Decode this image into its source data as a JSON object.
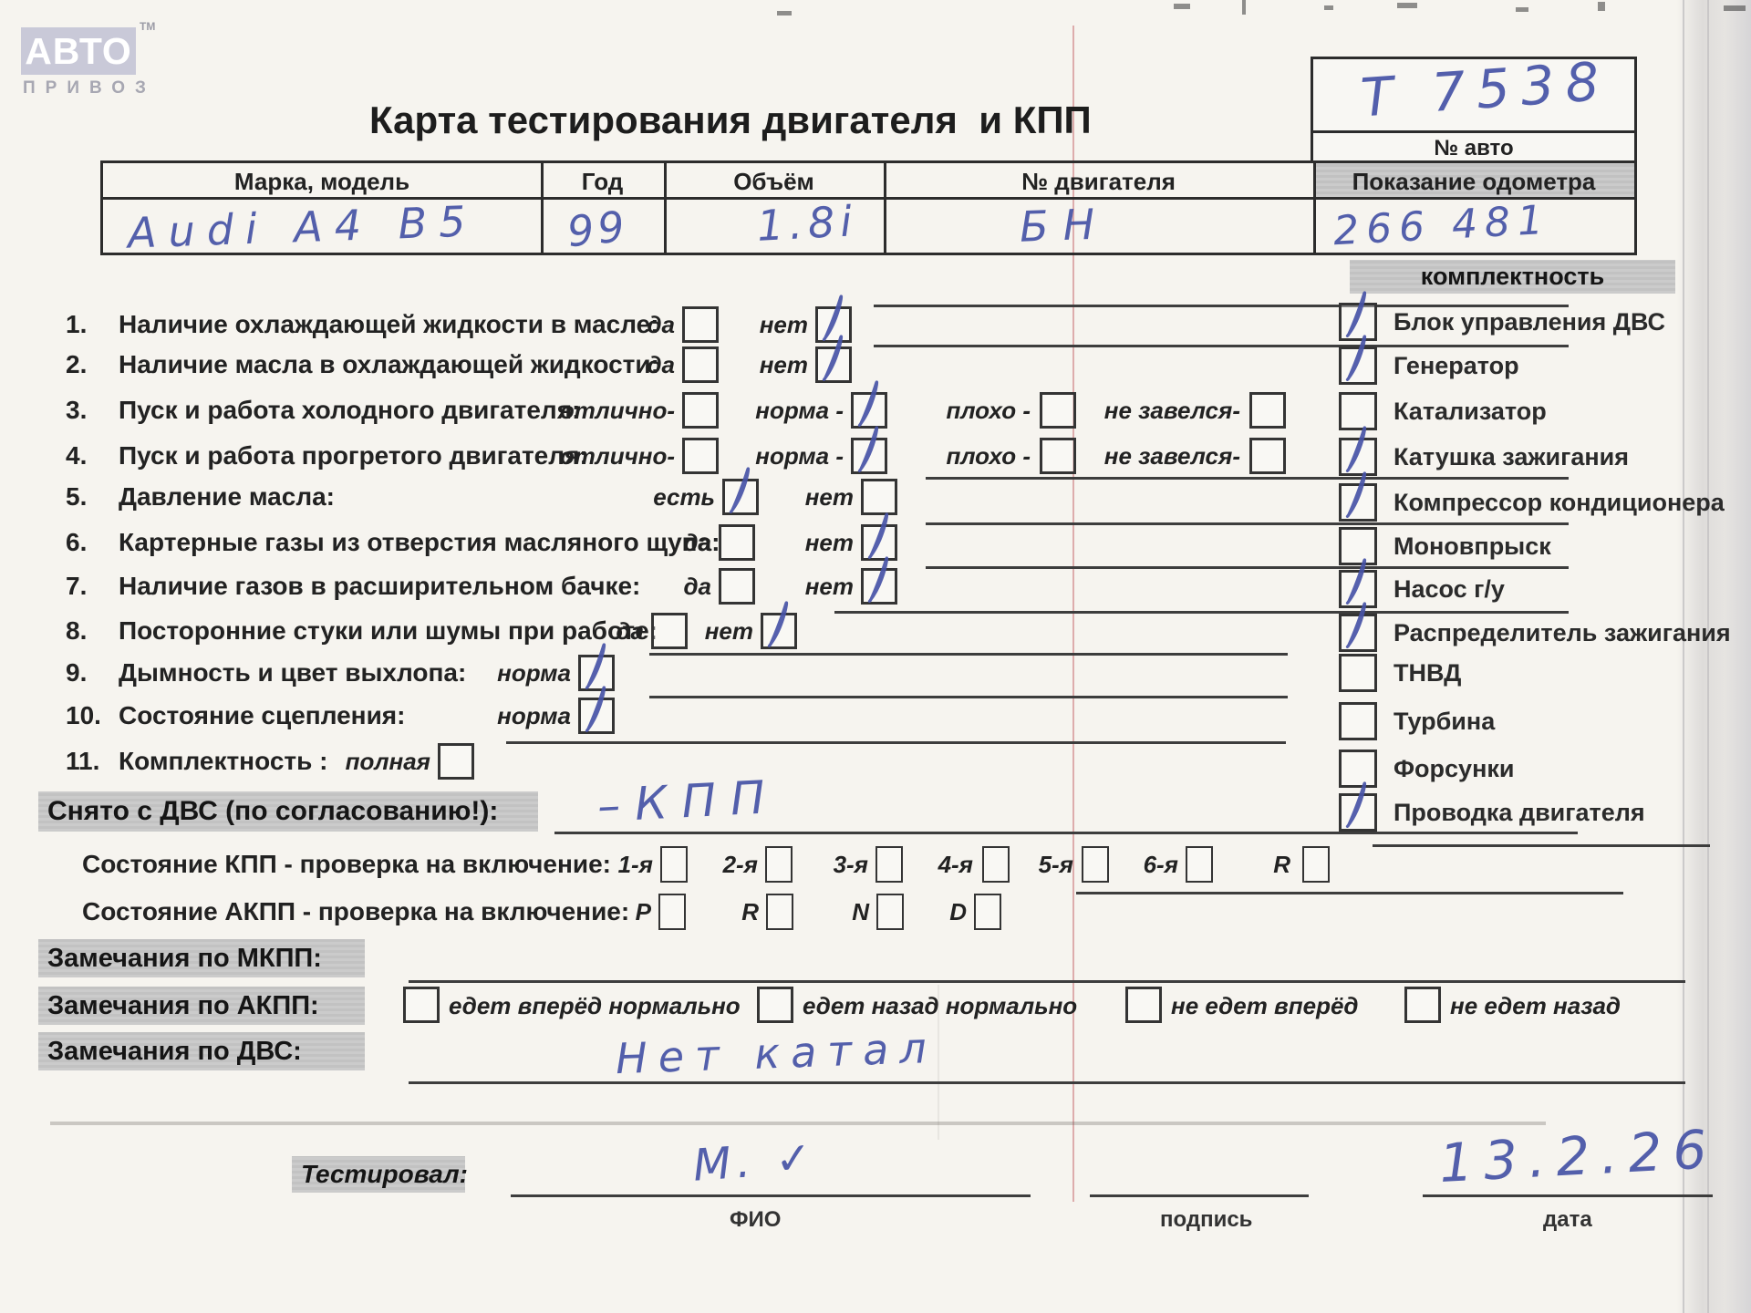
{
  "logo": {
    "brand": "АВТО",
    "tm": "ТМ",
    "subtitle": "ПРИВОЗ"
  },
  "title": "Карта тестирования двигателя  и КПП",
  "auto_number_box": {
    "value": "Т 7538",
    "label": "№ авто"
  },
  "vehicle": {
    "columns": [
      "Марка, модель",
      "Год",
      "Объём",
      "№ двигателя",
      "Показание одометра"
    ],
    "make_model": "Audi A4 B5",
    "year": "99",
    "volume": "1.8i",
    "engine_no": "БН",
    "odometer": "266 481"
  },
  "checklist": {
    "items": [
      {
        "num": "1.",
        "label": "Наличие охлаждающей жидкости в масле:",
        "options": [
          {
            "label": "да",
            "checked": false
          },
          {
            "label": "нет",
            "checked": true
          }
        ]
      },
      {
        "num": "2.",
        "label": "Наличие масла в охлаждающей жидкости:",
        "options": [
          {
            "label": "да",
            "checked": false
          },
          {
            "label": "нет",
            "checked": true
          }
        ]
      },
      {
        "num": "3.",
        "label": "Пуск и работа холодного двигателя:",
        "options": [
          {
            "label": "отлично-",
            "checked": false
          },
          {
            "label": "норма -",
            "checked": true
          },
          {
            "label": "плохо -",
            "checked": false
          },
          {
            "label": "не завелся-",
            "checked": false
          }
        ]
      },
      {
        "num": "4.",
        "label": "Пуск и работа прогретого двигателя:",
        "options": [
          {
            "label": "отлично-",
            "checked": false
          },
          {
            "label": "норма -",
            "checked": true
          },
          {
            "label": "плохо -",
            "checked": false
          },
          {
            "label": "не завелся-",
            "checked": false
          }
        ]
      },
      {
        "num": "5.",
        "label": "Давление масла:",
        "options": [
          {
            "label": "есть",
            "checked": true
          },
          {
            "label": "нет",
            "checked": false
          }
        ]
      },
      {
        "num": "6.",
        "label": "Картерные газы из отверстия масляного щупа:",
        "options": [
          {
            "label": "да",
            "checked": false
          },
          {
            "label": "нет",
            "checked": true
          }
        ]
      },
      {
        "num": "7.",
        "label": "Наличие газов в расширительном бачке:",
        "options": [
          {
            "label": "да",
            "checked": false
          },
          {
            "label": "нет",
            "checked": true
          }
        ]
      },
      {
        "num": "8.",
        "label": "Посторонние стуки или шумы при работе:",
        "options": [
          {
            "label": "да",
            "checked": false
          },
          {
            "label": "нет",
            "checked": true
          }
        ]
      },
      {
        "num": "9.",
        "label": "Дымность и цвет выхлопа:",
        "options": [
          {
            "label": "норма",
            "checked": true
          }
        ]
      },
      {
        "num": "10.",
        "label": "Состояние сцепления:",
        "options": [
          {
            "label": "норма",
            "checked": true
          }
        ]
      },
      {
        "num": "11.",
        "label": "Комплектность :",
        "options": [
          {
            "label": "полная",
            "checked": false
          }
        ]
      }
    ]
  },
  "completeness": {
    "title": "комплектность",
    "items": [
      {
        "label": "Блок управления ДВС",
        "checked": true
      },
      {
        "label": "Генератор",
        "checked": true
      },
      {
        "label": "Катализатор",
        "checked": false
      },
      {
        "label": "Катушка зажигания",
        "checked": true
      },
      {
        "label": "Компрессор кондиционера",
        "checked": true
      },
      {
        "label": "Моновпрыск",
        "checked": false
      },
      {
        "label": "Насос г/у",
        "checked": true
      },
      {
        "label": "Распределитель зажигания",
        "checked": true
      },
      {
        "label": "ТНВД",
        "checked": false
      },
      {
        "label": "Турбина",
        "checked": false
      },
      {
        "label": "Форсунки",
        "checked": false
      },
      {
        "label": "Проводка двигателя",
        "checked": true
      }
    ]
  },
  "removed": {
    "label": "Снято с ДВС (по согласованию!):",
    "value": "–КПП"
  },
  "gearbox": {
    "kpp_label": "Состояние КПП - проверка на включение:",
    "kpp_options": [
      {
        "label": "1-я",
        "checked": false
      },
      {
        "label": "2-я",
        "checked": false
      },
      {
        "label": "3-я",
        "checked": false
      },
      {
        "label": "4-я",
        "checked": false
      },
      {
        "label": "5-я",
        "checked": false
      },
      {
        "label": "6-я",
        "checked": false
      },
      {
        "label": "R",
        "checked": false
      }
    ],
    "akpp_label": "Состояние АКПП - проверка на включение:",
    "akpp_options": [
      {
        "label": "P",
        "checked": false
      },
      {
        "label": "R",
        "checked": false
      },
      {
        "label": "N",
        "checked": false
      },
      {
        "label": "D",
        "checked": false
      }
    ]
  },
  "remarks": {
    "mkpp_label": "Замечания по МКПП:",
    "akpp_label": "Замечания по АКПП:",
    "akpp_options": [
      {
        "label": "едет вперёд нормально",
        "checked": false
      },
      {
        "label": "едет назад нормально",
        "checked": false
      },
      {
        "label": "не едет вперёд",
        "checked": false
      },
      {
        "label": "не едет назад",
        "checked": false
      }
    ],
    "dvs_label": "Замечания по ДВС:",
    "dvs_value": "Нет катал"
  },
  "footer": {
    "tester_label": "Тестировал:",
    "fio_value": "М. ✓",
    "fio_label": "ФИО",
    "sign_label": "подпись",
    "date_value": "13.2.26",
    "date_label": "дата"
  },
  "colors": {
    "ink": "#4653a6",
    "bar_gray": "#c6c6c6"
  }
}
